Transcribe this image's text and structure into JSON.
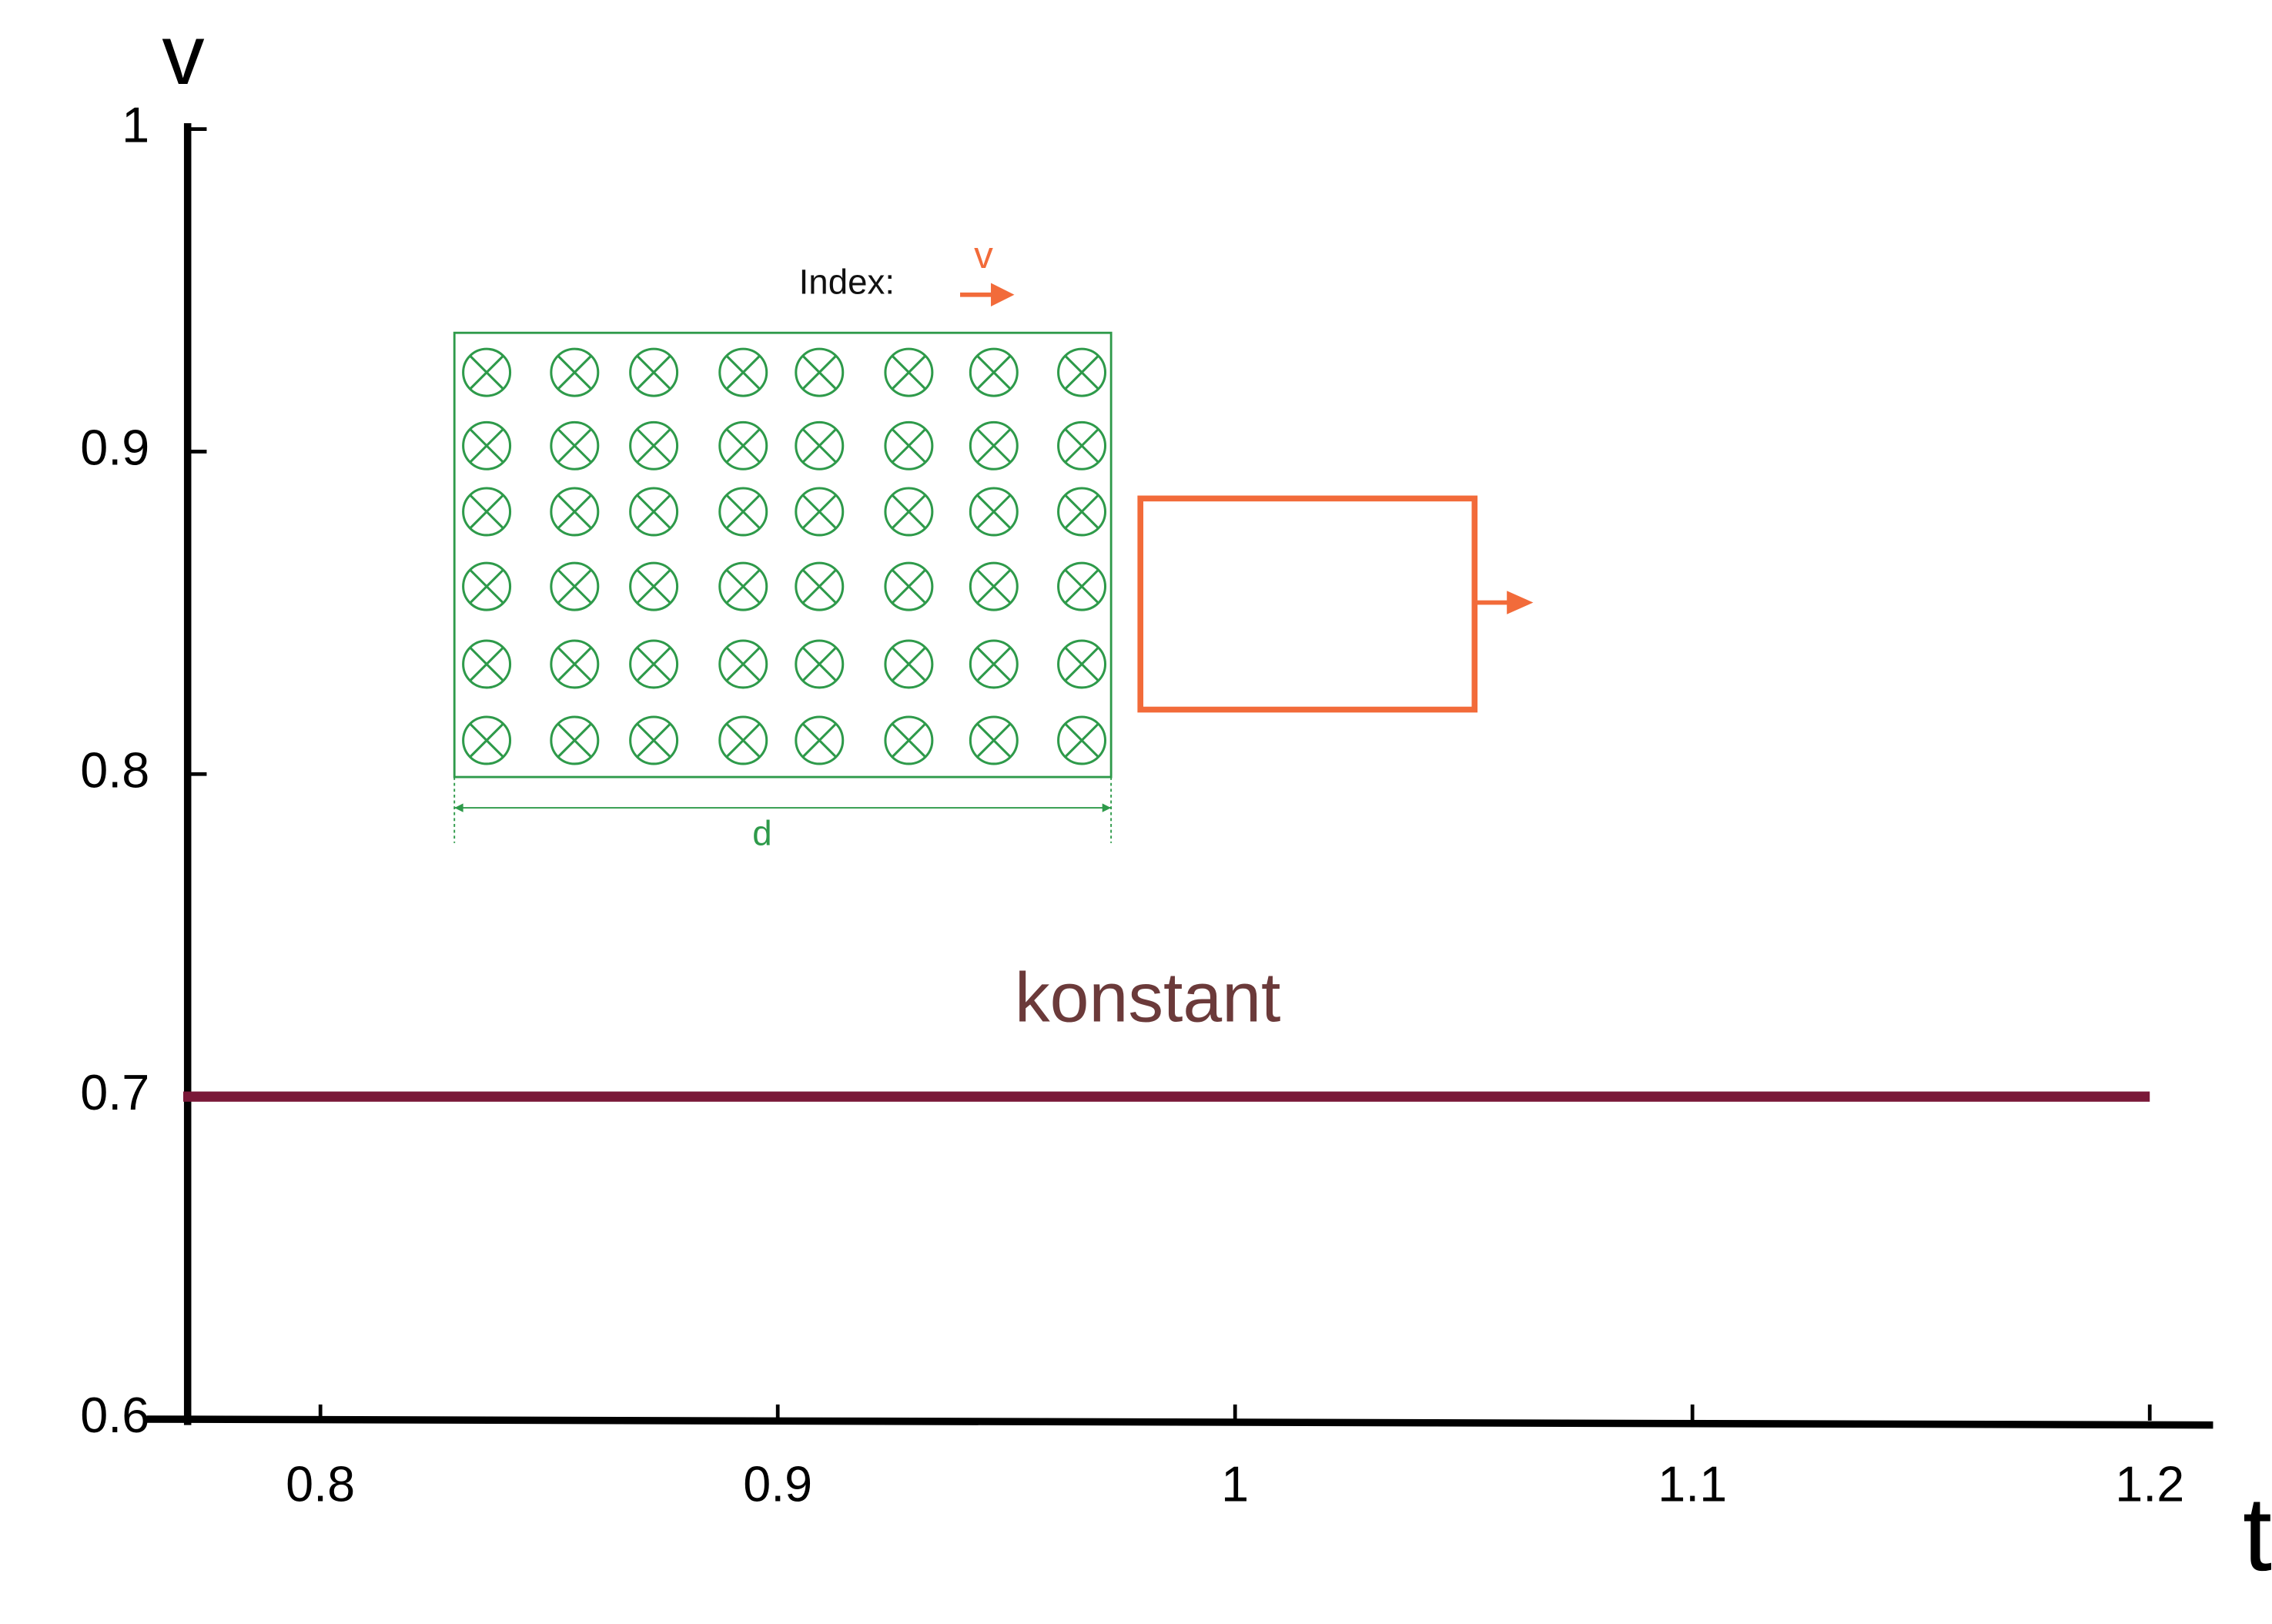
{
  "chart_data": {
    "type": "line",
    "x_label": "t",
    "y_label": "v",
    "annotation": "konstant",
    "x": [
      0.77,
      1.2
    ],
    "values": [
      0.7,
      0.7
    ],
    "color": "#7a1838",
    "xlim": [
      0.77,
      1.21
    ],
    "xticks": [
      0.8,
      0.9,
      1,
      1.1,
      1.2
    ],
    "ylim": [
      0.6,
      1
    ],
    "yticks": [
      0.6,
      0.7,
      0.8,
      0.9,
      1
    ]
  },
  "diagram": {
    "index_label": "Index:",
    "velocity_label": "v",
    "width_label": "d"
  }
}
